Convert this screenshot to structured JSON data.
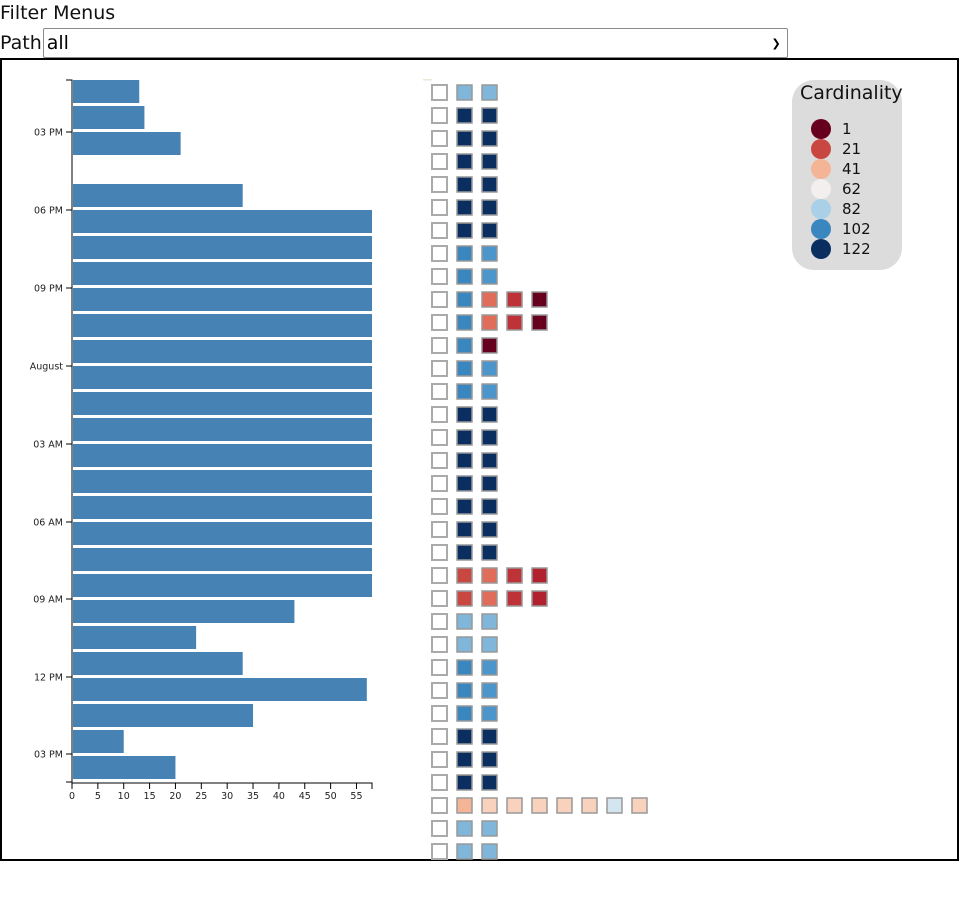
{
  "header": {
    "title": "Filter Menus",
    "path_label": "Path",
    "path_selected": "all"
  },
  "legend": {
    "title": "Cardinality",
    "items": [
      {
        "label": "1",
        "color": "#67001f"
      },
      {
        "label": "21",
        "color": "#c94741"
      },
      {
        "label": "41",
        "color": "#f4b596"
      },
      {
        "label": "62",
        "color": "#f2efee"
      },
      {
        "label": "82",
        "color": "#a9d0e6"
      },
      {
        "label": "102",
        "color": "#3a87c0"
      },
      {
        "label": "122",
        "color": "#0a2e5f"
      }
    ]
  },
  "chart_data": {
    "type": "bar",
    "orientation": "horizontal",
    "title": "",
    "xlabel": "",
    "ylabel": "",
    "xlim": [
      0,
      58
    ],
    "x_ticks": [
      "0",
      "5",
      "10",
      "15",
      "20",
      "25",
      "30",
      "35",
      "40",
      "45",
      "50",
      "55"
    ],
    "y_ticks": [
      "03 PM",
      "06 PM",
      "09 PM",
      "August",
      "03 AM",
      "06 AM",
      "09 AM",
      "12 PM",
      "03 PM"
    ],
    "bar_color": "#4682b4",
    "grid": false,
    "values": [
      13,
      14,
      21,
      null,
      33,
      58,
      58,
      58,
      58,
      58,
      58,
      58,
      58,
      58,
      58,
      58,
      58,
      58,
      58,
      58,
      43,
      24,
      33,
      57,
      35,
      10,
      20
    ]
  },
  "matrix": {
    "rows": [
      [
        "#ffffff",
        "#7fb6d9",
        "#7fb6d9"
      ],
      [
        "#ffffff",
        "#0a2e5f",
        "#0a2e5f"
      ],
      [
        "#ffffff",
        "#0a2e5f",
        "#0a2e5f"
      ],
      [
        "#ffffff",
        "#0a2e5f",
        "#0a2e5f"
      ],
      [
        "#ffffff",
        "#0a2e5f",
        "#0a2e5f"
      ],
      [
        "#ffffff",
        "#0a2e5f",
        "#0a2e5f"
      ],
      [
        "#ffffff",
        "#0a2e5f",
        "#0a2e5f"
      ],
      [
        "#ffffff",
        "#3a87c0",
        "#4c96cb"
      ],
      [
        "#ffffff",
        "#3a87c0",
        "#4c96cb"
      ],
      [
        "#ffffff",
        "#3a87c0",
        "#e06d59",
        "#bd3338",
        "#67001f"
      ],
      [
        "#ffffff",
        "#3a87c0",
        "#e06d59",
        "#bd3338",
        "#67001f"
      ],
      [
        "#ffffff",
        "#3a87c0",
        "#67001f"
      ],
      [
        "#ffffff",
        "#3a87c0",
        "#4c96cb"
      ],
      [
        "#ffffff",
        "#3a87c0",
        "#4c96cb"
      ],
      [
        "#ffffff",
        "#0a2e5f",
        "#0a2e5f"
      ],
      [
        "#ffffff",
        "#0a2e5f",
        "#0a2e5f"
      ],
      [
        "#ffffff",
        "#0a2e5f",
        "#0a2e5f"
      ],
      [
        "#ffffff",
        "#0a2e5f",
        "#0a2e5f"
      ],
      [
        "#ffffff",
        "#0a2e5f",
        "#0a2e5f"
      ],
      [
        "#ffffff",
        "#0a2e5f",
        "#0a2e5f"
      ],
      [
        "#ffffff",
        "#0a2e5f",
        "#0a2e5f"
      ],
      [
        "#ffffff",
        "#c94741",
        "#e06d59",
        "#bd3338",
        "#b2212f"
      ],
      [
        "#ffffff",
        "#c94741",
        "#e06d59",
        "#bd3338",
        "#b2212f"
      ],
      [
        "#ffffff",
        "#7fb6d9",
        "#7fb6d9"
      ],
      [
        "#ffffff",
        "#7fb6d9",
        "#7fb6d9"
      ],
      [
        "#ffffff",
        "#3a87c0",
        "#4c96cb"
      ],
      [
        "#ffffff",
        "#3a87c0",
        "#4c96cb"
      ],
      [
        "#ffffff",
        "#3a87c0",
        "#4c96cb"
      ],
      [
        "#ffffff",
        "#0a2e5f",
        "#0a2e5f"
      ],
      [
        "#ffffff",
        "#0a2e5f",
        "#0a2e5f"
      ],
      [
        "#ffffff",
        "#0a2e5f",
        "#0a2e5f"
      ],
      [
        "#ffffff",
        "#f4b596",
        "#f9d2be",
        "#f9d2be",
        "#f9d2be",
        "#f9d2be",
        "#f9d2be",
        "#d3e5f0",
        "#f9d2be"
      ],
      [
        "#ffffff",
        "#7fb6d9",
        "#7fb6d9"
      ],
      [
        "#ffffff",
        "#7fb6d9",
        "#7fb6d9"
      ]
    ]
  }
}
